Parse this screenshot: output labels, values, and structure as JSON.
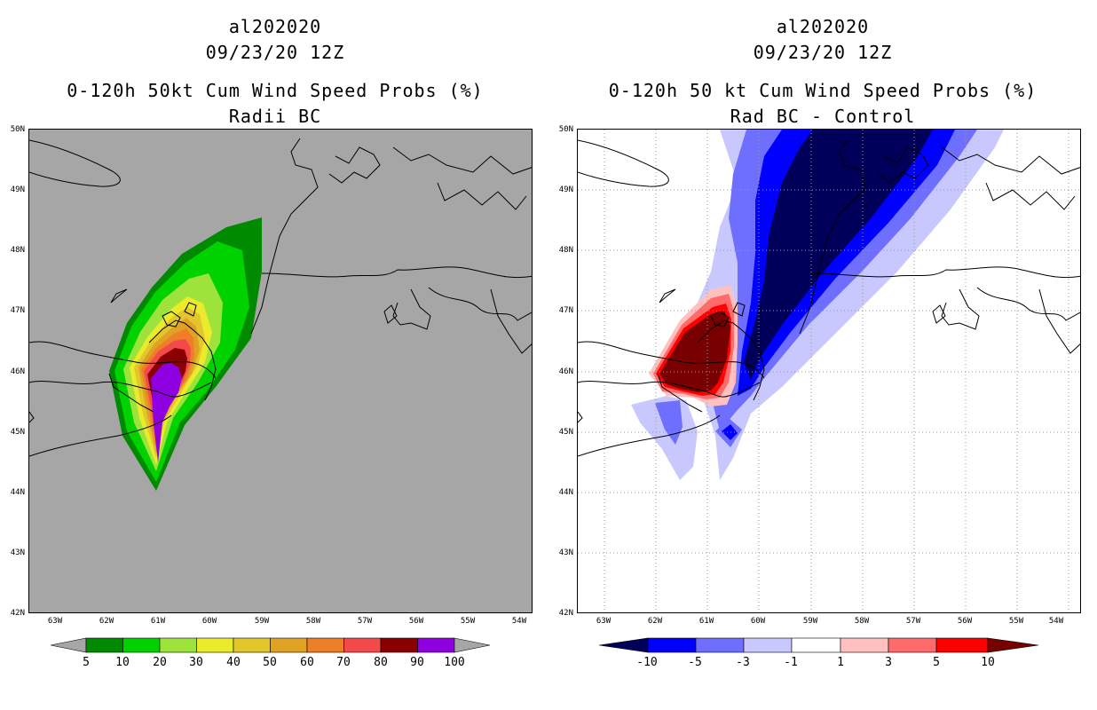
{
  "left": {
    "storm": "al202020",
    "date": "09/23/20 12Z",
    "product": "0-120h 50kt Cum Wind Speed Probs (%)",
    "subtitle": "Radii BC",
    "colorbar_labels": [
      "5",
      "10",
      "20",
      "30",
      "40",
      "50",
      "60",
      "70",
      "80",
      "90",
      "100"
    ],
    "colors": [
      "#008a00",
      "#00d200",
      "#9ee33c",
      "#ebeb2c",
      "#e2c62b",
      "#dfa225",
      "#ee7f26",
      "#f24a4a",
      "#8a0000",
      "#8f00e0"
    ]
  },
  "right": {
    "storm": "al202020",
    "date": "09/23/20 12Z",
    "product": "0-120h 50 kt Cum Wind Speed Probs (%)",
    "subtitle": "Rad BC - Control",
    "colorbar_labels": [
      "-10",
      "-5",
      "-3",
      "-1",
      "1",
      "3",
      "5",
      "10"
    ],
    "colors": [
      "#00005a",
      "#0000ff",
      "#6e6eff",
      "#c8c8ff",
      "#ffffff",
      "#ffc0c0",
      "#ff6a6a",
      "#ff0000",
      "#780000"
    ]
  },
  "axes": {
    "lat_labels": [
      "50N",
      "49N",
      "48N",
      "47N",
      "46N",
      "45N",
      "44N",
      "43N",
      "42N"
    ],
    "lon_labels": [
      "63W",
      "62W",
      "61W",
      "60W",
      "59W",
      "58W",
      "57W",
      "56W",
      "55W",
      "54W"
    ]
  }
}
